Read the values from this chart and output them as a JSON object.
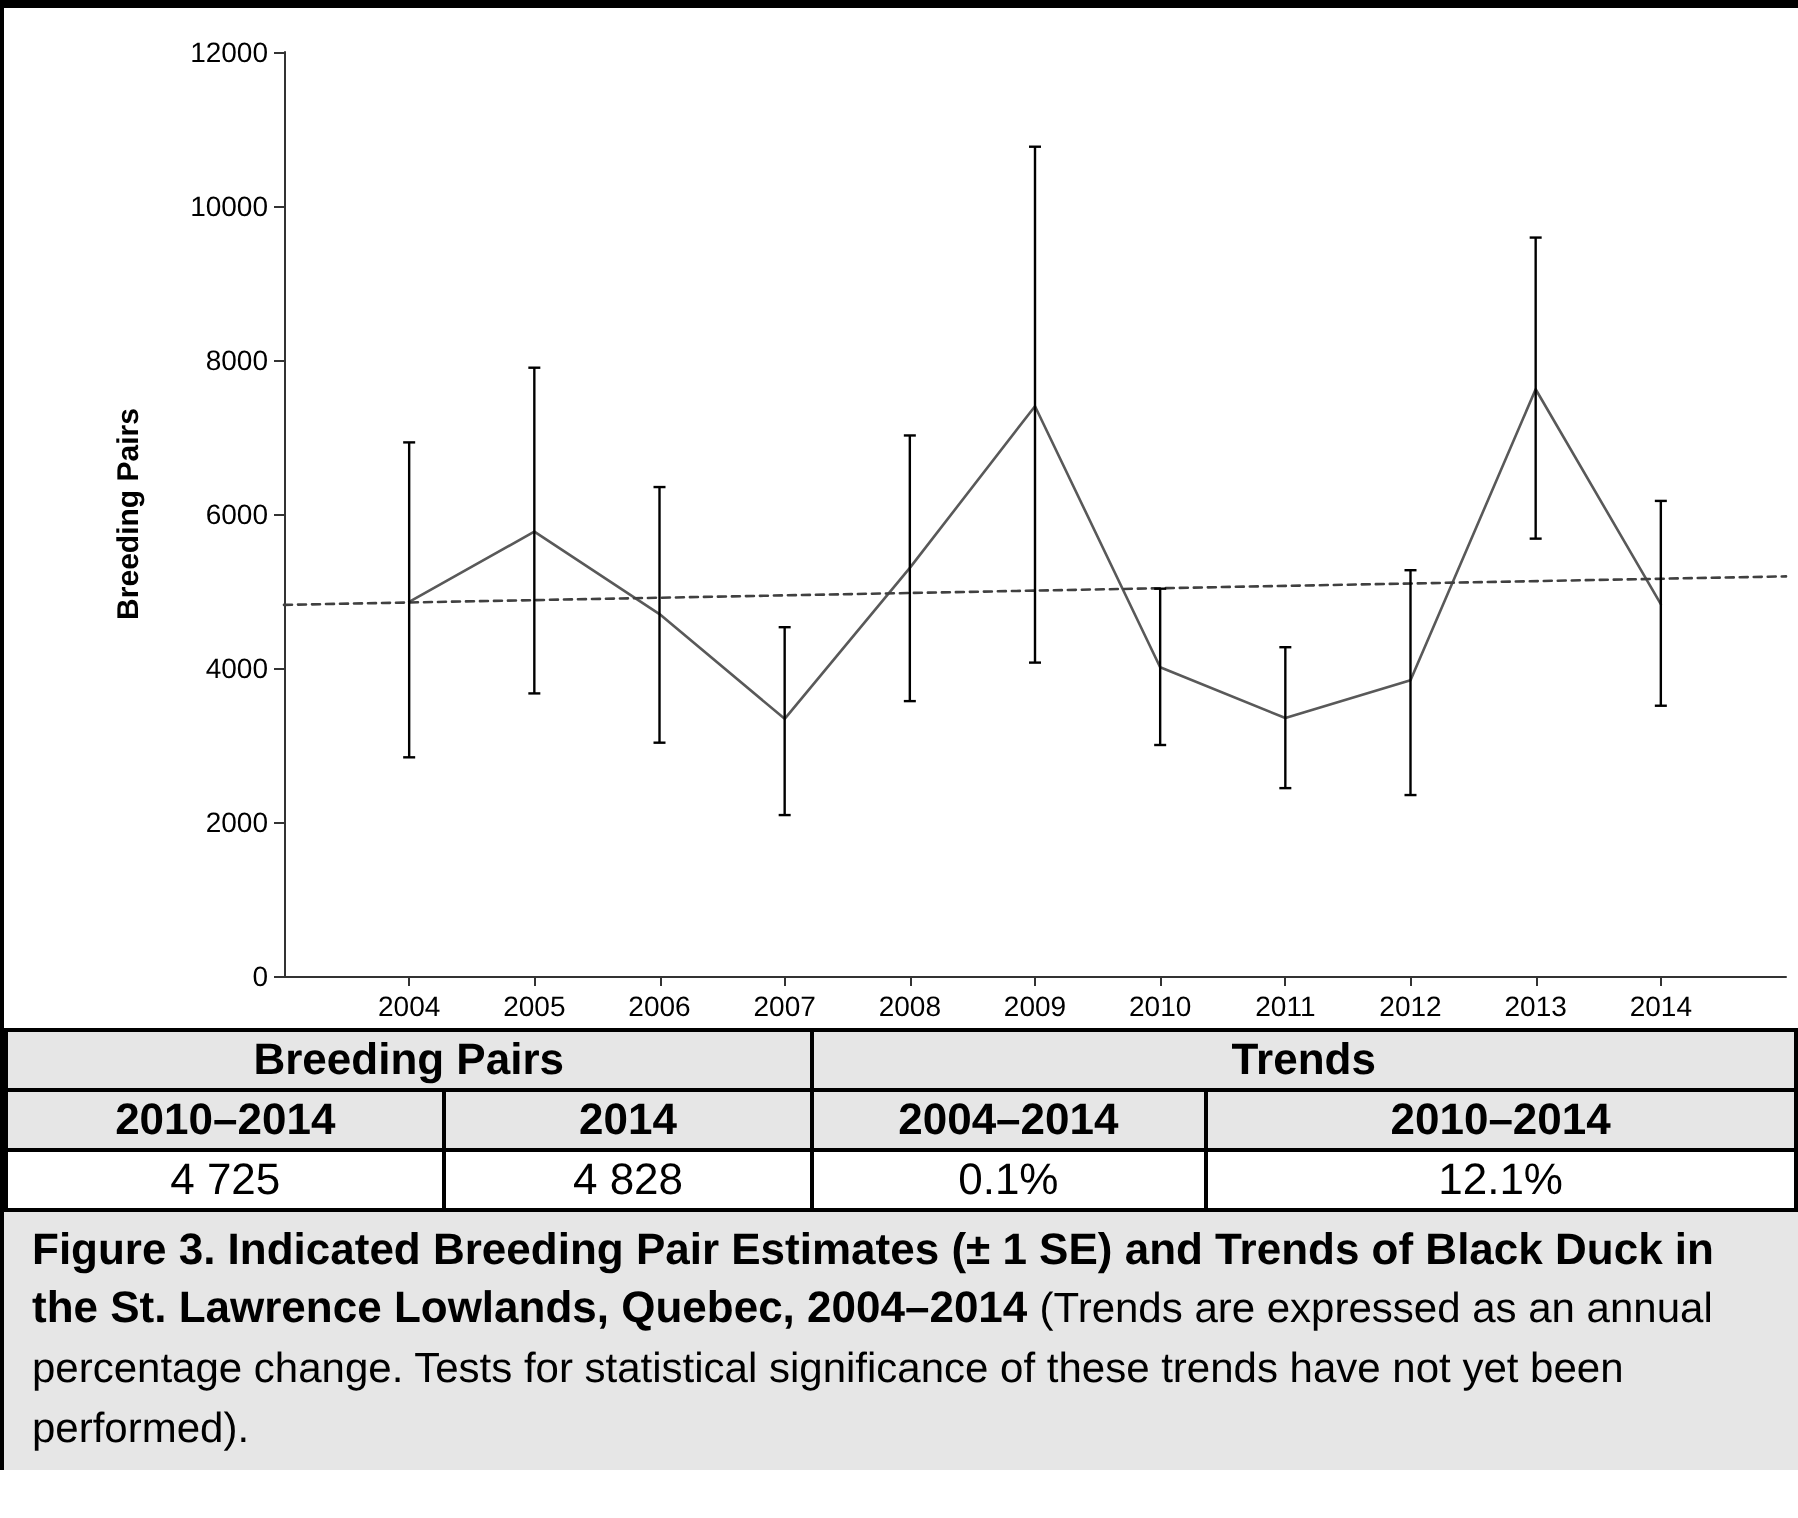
{
  "chart_data": {
    "type": "line",
    "ylabel": "Breeding Pairs",
    "x": [
      2004,
      2005,
      2006,
      2007,
      2008,
      2009,
      2010,
      2011,
      2012,
      2013,
      2014
    ],
    "xlim": [
      2003,
      2015
    ],
    "xticks": [
      2004,
      2005,
      2006,
      2007,
      2008,
      2009,
      2010,
      2011,
      2012,
      2013,
      2014
    ],
    "ylim": [
      0,
      12000
    ],
    "yticks": [
      0,
      2000,
      4000,
      6000,
      8000,
      10000,
      12000
    ],
    "grid": false,
    "marker": "none",
    "series": [
      {
        "color": "#595959",
        "line_style": "solid",
        "values": [
          4860,
          5770,
          4700,
          3340,
          5300,
          7400,
          4010,
          3350,
          3840,
          7620,
          4830
        ],
        "errors": [
          [
            2840,
            6930
          ],
          [
            3670,
            7900
          ],
          [
            3030,
            6350
          ],
          [
            2090,
            4530
          ],
          [
            3570,
            7020
          ],
          [
            4070,
            10770
          ],
          [
            3000,
            5030
          ],
          [
            2440,
            4270
          ],
          [
            2350,
            5270
          ],
          [
            5680,
            9590
          ],
          [
            3510,
            6170
          ]
        ]
      },
      {
        "type": "line",
        "color": "#404040",
        "line_style": "dashed",
        "x": [
          2003,
          2015
        ],
        "values": [
          4820,
          5190
        ]
      }
    ],
    "annotations": [
      "Breeding Pairs",
      "Trends",
      "2010–2014",
      "2014",
      "2004–2014",
      "2010–2014",
      "4 725",
      "4 828",
      "0.1%",
      "12.1%",
      "Figure 3. Indicated Breeding Pair Estimates (± 1 SE) and Trends of Black Duck in the St. Lawrence Lowlands, Quebec, 2004–2014",
      "(Trends are expressed as an annual percentage change. Tests for statistical significance of these trends have not yet been performed)."
    ]
  }
}
